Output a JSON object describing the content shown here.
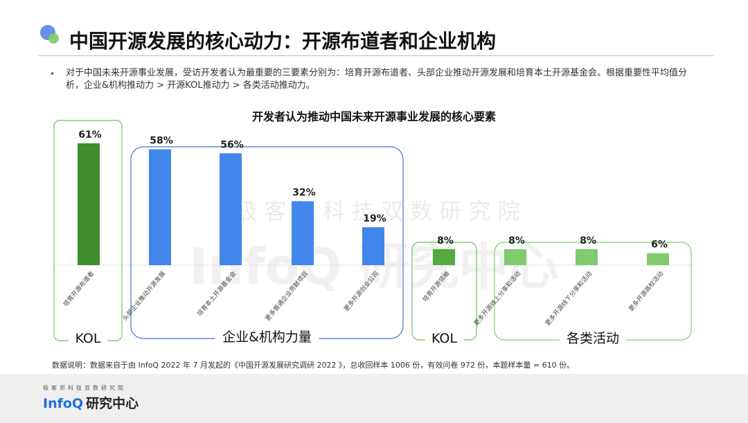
{
  "header": {
    "title": "中国开源发展的核心动力：开源布道者和企业机构",
    "bullet": "对于中国未来开源事业发展，受访开发者认为最重要的三要素分别为：培育开源布道者、头部企业推动开源发展和培育本土开源基金会。根据重要性平均值分析，企业&机构推动力 > 开源KOL推动力 > 各类活动推动力。"
  },
  "watermark": {
    "top": "极 客 邦 科 技 双 数 研 究 院",
    "main": "InfoQ 研究中心"
  },
  "chart_data": {
    "type": "bar",
    "title": "开发者认为推动中国未来开源事业发展的核心要素",
    "categories": [
      "培育开源布道者",
      "头部企业推动开源发展",
      "培育本土开源基金会",
      "更多普通企业贡献项目",
      "更多开源创业公司",
      "培育开源领袖",
      "更多开源线上分享和活动",
      "更多开源线下分享和活动",
      "更多开源高校活动"
    ],
    "values": [
      61,
      58,
      56,
      32,
      19,
      8,
      8,
      8,
      6
    ],
    "value_labels": [
      "61%",
      "58%",
      "56%",
      "32%",
      "19%",
      "8%",
      "8%",
      "8%",
      "6%"
    ],
    "ylim": [
      0,
      70
    ],
    "grid": false,
    "groups": [
      {
        "label": "KOL",
        "start": 0,
        "end": 0,
        "outline": "#6fbf5a"
      },
      {
        "label": "企业&机构力量",
        "start": 1,
        "end": 4,
        "outline": "#3a78d8"
      },
      {
        "label": "KOL",
        "start": 5,
        "end": 5,
        "outline": "#6fbf5a"
      },
      {
        "label": "各类活动",
        "start": 6,
        "end": 8,
        "outline": "#7ccf6a"
      }
    ],
    "bar_colors": [
      "#3e8e2e",
      "#4286ec",
      "#4286ec",
      "#4286ec",
      "#4286ec",
      "#54a93f",
      "#7fcb6e",
      "#7fcb6e",
      "#7fcb6e"
    ]
  },
  "footer": {
    "note": "数据说明：数据来自于由 InfoQ 2022 年 7 月发起的《中国开源发展研究调研 2022 》，总收回样本 1006 份，有效问卷 972 份，本题样本量 = 610 份。",
    "logo_sub": "极客邦科技双数研究院",
    "logo_infoq": "InfoQ",
    "logo_cn": "研究中心"
  }
}
